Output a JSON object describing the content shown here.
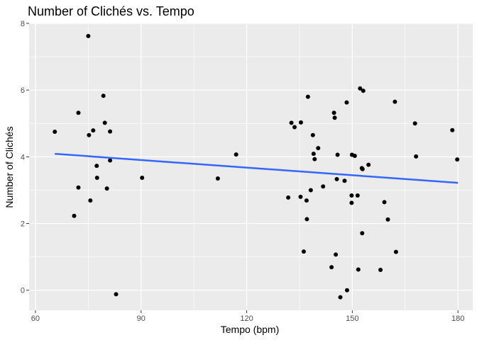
{
  "chart_data": {
    "type": "scatter",
    "title": "Number of Clichés vs. Tempo",
    "xlabel": "Tempo (bpm)",
    "ylabel": "Number of Clichés",
    "xlim": [
      58.2,
      184.2
    ],
    "ylim": [
      -0.6,
      8.0
    ],
    "xticks": [
      60,
      90,
      120,
      150,
      180
    ],
    "yticks": [
      0,
      2,
      4,
      6,
      8
    ],
    "grid": true,
    "colors": {
      "panel": "#ebebeb",
      "grid": "#ffffff",
      "point": "#000000",
      "trend": "#3366ff"
    },
    "trendline": {
      "x": [
        65.5,
        180
      ],
      "y": [
        4.09,
        3.22
      ]
    },
    "points": [
      {
        "x": 65.5,
        "y": 4.75
      },
      {
        "x": 71.0,
        "y": 2.23
      },
      {
        "x": 72.2,
        "y": 5.32
      },
      {
        "x": 72.2,
        "y": 3.08
      },
      {
        "x": 75.0,
        "y": 7.62
      },
      {
        "x": 75.2,
        "y": 4.65
      },
      {
        "x": 75.6,
        "y": 2.69
      },
      {
        "x": 76.4,
        "y": 4.79
      },
      {
        "x": 77.4,
        "y": 3.73
      },
      {
        "x": 77.5,
        "y": 3.37
      },
      {
        "x": 79.3,
        "y": 5.83
      },
      {
        "x": 79.7,
        "y": 5.02
      },
      {
        "x": 80.3,
        "y": 3.05
      },
      {
        "x": 81.2,
        "y": 4.76
      },
      {
        "x": 81.2,
        "y": 3.89
      },
      {
        "x": 82.9,
        "y": -0.12
      },
      {
        "x": 90.3,
        "y": 3.37
      },
      {
        "x": 111.8,
        "y": 3.35
      },
      {
        "x": 117.0,
        "y": 4.07
      },
      {
        "x": 131.8,
        "y": 2.78
      },
      {
        "x": 132.7,
        "y": 5.02
      },
      {
        "x": 133.6,
        "y": 4.89
      },
      {
        "x": 135.3,
        "y": 2.8
      },
      {
        "x": 135.4,
        "y": 5.03
      },
      {
        "x": 136.2,
        "y": 1.16
      },
      {
        "x": 137.0,
        "y": 2.69
      },
      {
        "x": 137.1,
        "y": 2.13
      },
      {
        "x": 137.4,
        "y": 5.8
      },
      {
        "x": 138.2,
        "y": 3.0
      },
      {
        "x": 138.8,
        "y": 4.65
      },
      {
        "x": 139.0,
        "y": 4.09
      },
      {
        "x": 139.3,
        "y": 3.93
      },
      {
        "x": 140.3,
        "y": 4.26
      },
      {
        "x": 141.7,
        "y": 3.11
      },
      {
        "x": 144.1,
        "y": 0.69
      },
      {
        "x": 144.8,
        "y": 5.32
      },
      {
        "x": 145.0,
        "y": 5.17
      },
      {
        "x": 145.3,
        "y": 1.07
      },
      {
        "x": 145.6,
        "y": 3.33
      },
      {
        "x": 145.8,
        "y": 4.06
      },
      {
        "x": 146.6,
        "y": -0.21
      },
      {
        "x": 147.8,
        "y": 3.28
      },
      {
        "x": 148.4,
        "y": 5.63
      },
      {
        "x": 148.5,
        "y": 0.0
      },
      {
        "x": 149.8,
        "y": 2.84
      },
      {
        "x": 149.8,
        "y": 2.62
      },
      {
        "x": 149.9,
        "y": 4.06
      },
      {
        "x": 150.7,
        "y": 4.03
      },
      {
        "x": 151.5,
        "y": 2.84
      },
      {
        "x": 151.7,
        "y": 0.62
      },
      {
        "x": 152.2,
        "y": 6.05
      },
      {
        "x": 152.7,
        "y": 3.66
      },
      {
        "x": 152.8,
        "y": 1.71
      },
      {
        "x": 152.9,
        "y": 3.63
      },
      {
        "x": 153.1,
        "y": 5.98
      },
      {
        "x": 154.6,
        "y": 3.76
      },
      {
        "x": 158.0,
        "y": 0.61
      },
      {
        "x": 159.1,
        "y": 2.64
      },
      {
        "x": 160.1,
        "y": 2.12
      },
      {
        "x": 162.1,
        "y": 5.65
      },
      {
        "x": 162.4,
        "y": 1.15
      },
      {
        "x": 167.8,
        "y": 5.0
      },
      {
        "x": 168.1,
        "y": 4.01
      },
      {
        "x": 178.4,
        "y": 4.8
      },
      {
        "x": 179.8,
        "y": 3.92
      }
    ]
  }
}
